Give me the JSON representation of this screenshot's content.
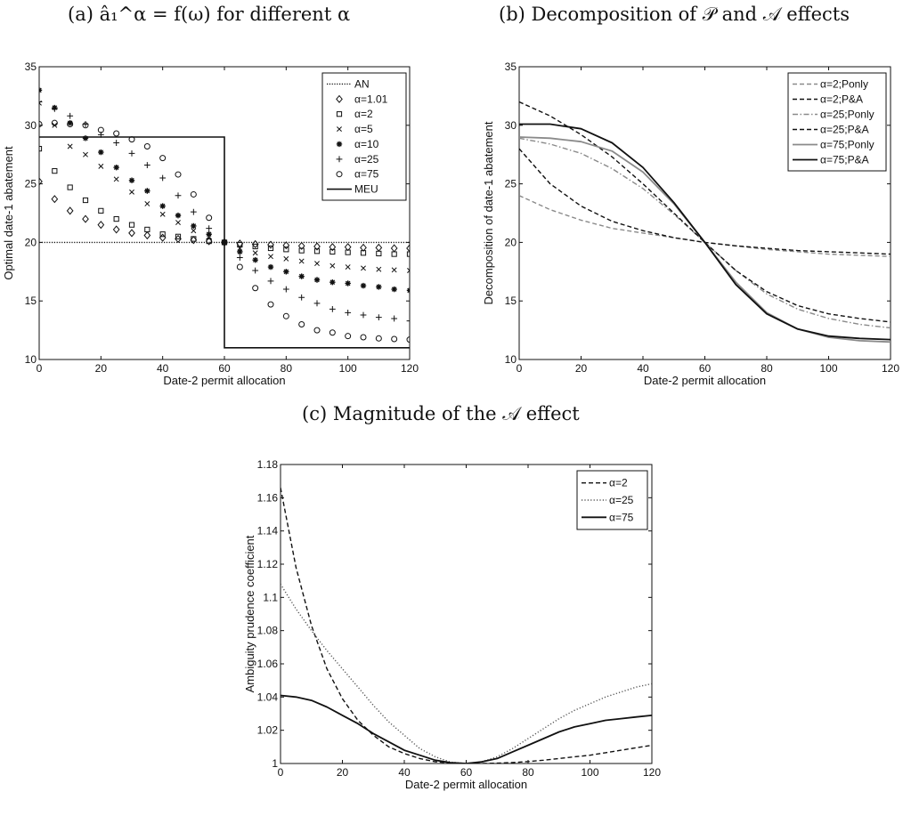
{
  "panel_titles": {
    "a": "(a) â₁^α = f(ω) for different α",
    "b": "(b) Decomposition of 𝒫 and 𝒜 effects",
    "c": "(c) Magnitude of the 𝒜 effect"
  },
  "chart_data": [
    {
      "id": "a",
      "type": "scatter",
      "title": "(a) â₁^α = f(ω) for different α",
      "xlabel": "Date-2 permit allocation",
      "ylabel": "Optimal date-1 abatement",
      "xlim": [
        0,
        120
      ],
      "ylim": [
        10,
        35
      ],
      "xticks": [
        0,
        20,
        40,
        60,
        80,
        100,
        120
      ],
      "yticks": [
        10,
        15,
        20,
        25,
        30,
        35
      ],
      "legend_position": "top-right",
      "grid": false,
      "x": [
        0,
        5,
        10,
        15,
        20,
        25,
        30,
        35,
        40,
        45,
        50,
        55,
        60,
        65,
        70,
        75,
        80,
        85,
        90,
        95,
        100,
        105,
        110,
        115,
        120
      ],
      "lines": [
        {
          "name": "AN",
          "style": "dotted",
          "x": [
            0,
            120
          ],
          "y": [
            20,
            20
          ]
        },
        {
          "name": "MEU",
          "style": "solid",
          "x": [
            0,
            60,
            60,
            120
          ],
          "y": [
            29,
            29,
            11,
            11
          ]
        }
      ],
      "series": [
        {
          "name": "α=1.01",
          "marker": "diamond",
          "y": [
            25.2,
            23.7,
            22.7,
            22.0,
            21.5,
            21.1,
            20.8,
            20.6,
            20.4,
            20.3,
            20.2,
            20.1,
            20.0,
            19.9,
            19.85,
            19.8,
            19.75,
            19.7,
            19.65,
            19.6,
            19.6,
            19.55,
            19.55,
            19.5,
            19.5
          ]
        },
        {
          "name": "α=2",
          "marker": "square",
          "y": [
            28.0,
            26.1,
            24.7,
            23.6,
            22.7,
            22.0,
            21.5,
            21.1,
            20.7,
            20.5,
            20.3,
            20.1,
            20.0,
            19.8,
            19.65,
            19.5,
            19.4,
            19.3,
            19.25,
            19.2,
            19.15,
            19.1,
            19.05,
            19.0,
            19.0
          ]
        },
        {
          "name": "α=5",
          "marker": "x",
          "y": [
            31.9,
            30.0,
            28.2,
            27.5,
            26.5,
            25.4,
            24.3,
            23.3,
            22.4,
            21.7,
            21.0,
            20.5,
            20.0,
            19.5,
            19.1,
            18.8,
            18.6,
            18.4,
            18.2,
            18.0,
            17.9,
            17.8,
            17.7,
            17.65,
            17.6
          ]
        },
        {
          "name": "α=10",
          "marker": "asterisk",
          "y": [
            33.0,
            31.5,
            30.2,
            28.9,
            27.7,
            26.4,
            25.3,
            24.4,
            23.1,
            22.3,
            21.4,
            20.7,
            20.0,
            19.2,
            18.5,
            17.9,
            17.5,
            17.1,
            16.8,
            16.6,
            16.5,
            16.3,
            16.2,
            16.0,
            15.9
          ]
        },
        {
          "name": "α=25",
          "marker": "plus",
          "y": [
            32.0,
            31.4,
            30.8,
            30.1,
            29.2,
            28.5,
            27.6,
            26.6,
            25.5,
            24.0,
            22.6,
            21.2,
            20.0,
            18.7,
            17.6,
            16.7,
            16.0,
            15.3,
            14.8,
            14.3,
            14.0,
            13.8,
            13.6,
            13.5,
            13.3
          ]
        },
        {
          "name": "α=75",
          "marker": "circle",
          "y": [
            30.1,
            30.2,
            30.1,
            30.0,
            29.6,
            29.3,
            28.8,
            28.2,
            27.2,
            25.8,
            24.1,
            22.1,
            20.0,
            17.9,
            16.1,
            14.7,
            13.7,
            13.0,
            12.5,
            12.3,
            12.0,
            11.9,
            11.8,
            11.75,
            11.7
          ]
        }
      ]
    },
    {
      "id": "b",
      "type": "line",
      "title": "(b) Decomposition of 𝒫 and 𝒜 effects",
      "xlabel": "Date-2 permit allocation",
      "ylabel": "Decomposition of date-1 abatement",
      "xlim": [
        0,
        120
      ],
      "ylim": [
        10,
        35
      ],
      "xticks": [
        0,
        20,
        40,
        60,
        80,
        100,
        120
      ],
      "yticks": [
        10,
        15,
        20,
        25,
        30,
        35
      ],
      "legend_position": "top-right",
      "grid": false,
      "x": [
        0,
        10,
        20,
        30,
        40,
        50,
        60,
        70,
        80,
        90,
        100,
        110,
        120
      ],
      "series": [
        {
          "name": "α=2;Ponly",
          "color": "#8a8a8a",
          "dash": "dashed",
          "y": [
            24.0,
            22.8,
            21.9,
            21.2,
            20.8,
            20.4,
            20.0,
            19.7,
            19.4,
            19.2,
            19.0,
            18.9,
            18.8
          ]
        },
        {
          "name": "α=2;P&A",
          "color": "#111111",
          "dash": "dashed",
          "y": [
            28.0,
            25.0,
            23.1,
            21.8,
            21.0,
            20.4,
            20.0,
            19.7,
            19.5,
            19.3,
            19.2,
            19.1,
            19.0
          ]
        },
        {
          "name": "α=25;Ponly",
          "color": "#8a8a8a",
          "dash": "dashdot",
          "y": [
            28.9,
            28.4,
            27.6,
            26.3,
            24.6,
            22.4,
            20.0,
            17.6,
            15.6,
            14.3,
            13.5,
            13.0,
            12.7
          ]
        },
        {
          "name": "α=25;P&A",
          "color": "#111111",
          "dash": "dashed",
          "y": [
            32.0,
            30.8,
            29.2,
            27.3,
            25.0,
            22.5,
            20.0,
            17.6,
            15.8,
            14.6,
            13.9,
            13.5,
            13.2
          ]
        },
        {
          "name": "α=75;Ponly",
          "color": "#8a8a8a",
          "dash": "solid",
          "y": [
            29.0,
            28.9,
            28.6,
            27.8,
            26.0,
            23.3,
            20.0,
            16.6,
            14.0,
            12.6,
            11.9,
            11.6,
            11.5
          ]
        },
        {
          "name": "α=75;P&A",
          "color": "#111111",
          "dash": "solid",
          "y": [
            30.1,
            30.1,
            29.7,
            28.5,
            26.4,
            23.4,
            20.0,
            16.4,
            13.9,
            12.6,
            12.0,
            11.8,
            11.7
          ]
        }
      ]
    },
    {
      "id": "c",
      "type": "line",
      "title": "(c) Magnitude of the 𝒜 effect",
      "xlabel": "Date-2 permit allocation",
      "ylabel": "Ambiguity prudence coefficient",
      "xlim": [
        0,
        120
      ],
      "ylim": [
        1,
        1.18
      ],
      "xticks": [
        0,
        20,
        40,
        60,
        80,
        100,
        120
      ],
      "yticks": [
        1,
        1.02,
        1.04,
        1.06,
        1.08,
        1.1,
        1.12,
        1.14,
        1.16,
        1.18
      ],
      "legend_position": "top-right",
      "grid": false,
      "x": [
        0,
        5,
        10,
        15,
        20,
        25,
        30,
        35,
        40,
        45,
        50,
        55,
        60,
        65,
        70,
        75,
        80,
        85,
        90,
        95,
        100,
        105,
        110,
        115,
        120
      ],
      "series": [
        {
          "name": "α=2",
          "color": "#111111",
          "dash": "dashed",
          "y": [
            1.166,
            1.118,
            1.083,
            1.057,
            1.039,
            1.026,
            1.017,
            1.01,
            1.006,
            1.003,
            1.001,
            1.0003,
            1.0,
            1.0,
            1.0002,
            1.0006,
            1.0012,
            1.002,
            1.003,
            1.004,
            1.005,
            1.0065,
            1.008,
            1.0095,
            1.011
          ]
        },
        {
          "name": "α=25",
          "color": "#555555",
          "dash": "dotted",
          "y": [
            1.108,
            1.093,
            1.08,
            1.068,
            1.057,
            1.046,
            1.035,
            1.025,
            1.017,
            1.009,
            1.004,
            1.0008,
            1.0,
            1.001,
            1.004,
            1.009,
            1.015,
            1.021,
            1.027,
            1.032,
            1.036,
            1.04,
            1.043,
            1.046,
            1.048
          ]
        },
        {
          "name": "α=75",
          "color": "#111111",
          "dash": "solid",
          "y": [
            1.041,
            1.04,
            1.038,
            1.034,
            1.029,
            1.024,
            1.018,
            1.013,
            1.008,
            1.005,
            1.002,
            1.0005,
            1.0,
            1.001,
            1.003,
            1.007,
            1.011,
            1.015,
            1.019,
            1.022,
            1.024,
            1.026,
            1.027,
            1.028,
            1.029
          ]
        }
      ]
    }
  ]
}
